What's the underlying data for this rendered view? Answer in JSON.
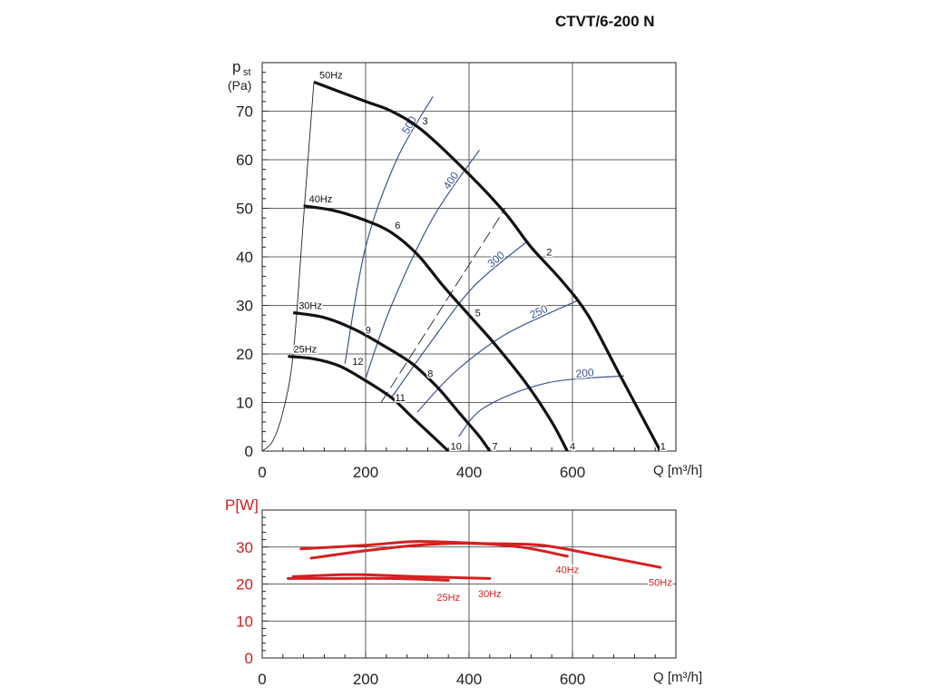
{
  "title": "CTVT/6-200 N",
  "chart_data": [
    {
      "type": "line",
      "title": "CTVT/6-200 N",
      "ylabel_main": "p",
      "ylabel_sub": "st",
      "ylabel_unit": "(Pa)",
      "xlabel": "Q [m³/h]",
      "xlim": [
        0,
        800
      ],
      "ylim": [
        0,
        80
      ],
      "xticks": [
        "0",
        "200",
        "400",
        "600"
      ],
      "yticks": [
        "0",
        "10",
        "20",
        "30",
        "40",
        "50",
        "60",
        "70"
      ],
      "grid": true,
      "series": [
        {
          "name": "50Hz",
          "x": [
            100,
            200,
            250,
            310,
            400,
            470,
            520,
            580,
            630,
            690,
            770
          ],
          "y": [
            76,
            72,
            70,
            66,
            57,
            49,
            42,
            35,
            28,
            16,
            0
          ]
        },
        {
          "name": "40Hz",
          "x": [
            80,
            140,
            200,
            250,
            300,
            350,
            400,
            450,
            510,
            560,
            590
          ],
          "y": [
            50.5,
            49.5,
            47.5,
            45,
            40.5,
            34,
            28,
            22,
            14,
            6,
            0
          ]
        },
        {
          "name": "30Hz",
          "x": [
            60,
            120,
            180,
            230,
            290,
            340,
            380,
            420,
            440
          ],
          "y": [
            28.5,
            27.5,
            25,
            22,
            18,
            13,
            8,
            3,
            0
          ]
        },
        {
          "name": "25Hz",
          "x": [
            50,
            100,
            150,
            200,
            250,
            290,
            330,
            360
          ],
          "y": [
            19.5,
            19,
            17.5,
            14.5,
            11,
            7,
            3,
            0
          ]
        }
      ],
      "efficiency_curves": [
        {
          "label": "500",
          "x": [
            160,
            200,
            260,
            330
          ],
          "y": [
            18,
            42,
            60,
            73
          ]
        },
        {
          "label": "400",
          "x": [
            200,
            250,
            330,
            420
          ],
          "y": [
            15,
            30,
            48,
            62
          ]
        },
        {
          "label": "300",
          "x": [
            250,
            330,
            410,
            510
          ],
          "y": [
            11,
            23,
            34,
            43
          ]
        },
        {
          "label": "250",
          "x": [
            300,
            370,
            470,
            610
          ],
          "y": [
            8,
            16,
            24,
            31
          ]
        },
        {
          "label": "200",
          "x": [
            380,
            430,
            550,
            700
          ],
          "y": [
            3,
            9,
            14,
            15.5
          ]
        }
      ],
      "system_curves": [
        {
          "name": "parabola",
          "x": [
            0,
            20,
            40,
            60,
            80,
            100
          ],
          "y": [
            0,
            2,
            8,
            20,
            48,
            76
          ]
        },
        {
          "name": "dashed",
          "x": [
            230,
            350,
            470
          ],
          "y": [
            10,
            30,
            50
          ]
        }
      ],
      "point_labels": [
        {
          "text": "1",
          "x": 775,
          "y": 1
        },
        {
          "text": "2",
          "x": 555,
          "y": 41
        },
        {
          "text": "3",
          "x": 315,
          "y": 68
        },
        {
          "text": "4",
          "x": 600,
          "y": 1
        },
        {
          "text": "5",
          "x": 417,
          "y": 28.5
        },
        {
          "text": "6",
          "x": 262,
          "y": 46.5
        },
        {
          "text": "7",
          "x": 450,
          "y": 1
        },
        {
          "text": "8",
          "x": 325,
          "y": 16
        },
        {
          "text": "9",
          "x": 205,
          "y": 25
        },
        {
          "text": "10",
          "x": 375,
          "y": 1
        },
        {
          "text": "11",
          "x": 267,
          "y": 11
        },
        {
          "text": "12",
          "x": 185,
          "y": 18.5
        }
      ]
    },
    {
      "type": "line",
      "ylabel": "P[W]",
      "xlabel": "Q [m³/h]",
      "xlim": [
        0,
        800
      ],
      "ylim": [
        0,
        40
      ],
      "xticks": [
        "0",
        "200",
        "400",
        "600"
      ],
      "yticks": [
        "0",
        "10",
        "20",
        "30"
      ],
      "grid": true,
      "series": [
        {
          "name": "50Hz",
          "x": [
            75,
            200,
            300,
            420,
            540,
            640,
            770
          ],
          "y": [
            29.5,
            30.5,
            31.5,
            31,
            30.5,
            28,
            24.5
          ]
        },
        {
          "name": "40Hz",
          "x": [
            95,
            200,
            300,
            400,
            500,
            590
          ],
          "y": [
            27,
            29,
            30.5,
            31,
            30,
            27.5
          ]
        },
        {
          "name": "30Hz",
          "x": [
            60,
            150,
            200,
            300,
            440
          ],
          "y": [
            22,
            22.5,
            22.5,
            22,
            21.5
          ]
        },
        {
          "name": "25Hz",
          "x": [
            50,
            150,
            250,
            360
          ],
          "y": [
            21.5,
            21.5,
            21.5,
            21
          ]
        }
      ],
      "series_labels": [
        "25Hz",
        "30Hz",
        "40Hz",
        "50Hz"
      ]
    }
  ]
}
